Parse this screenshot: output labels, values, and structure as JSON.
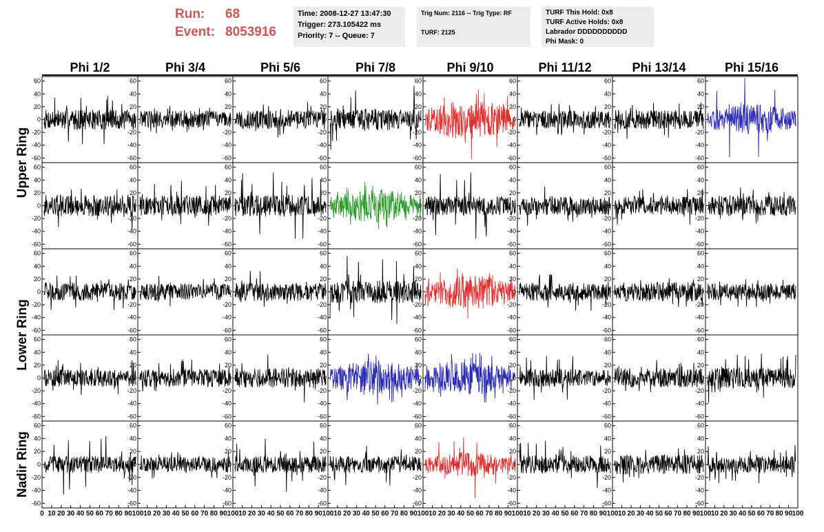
{
  "header": {
    "run_label": "Run:",
    "run_value": "68",
    "event_label": "Event:",
    "event_value": "8053916"
  },
  "info_box_1": {
    "time": "Time: 2008-12-27 13:47:30",
    "trigger": "Trigger: 273.105422 ms",
    "priority": "Priority: 7 -- Queue: 7"
  },
  "info_box_2": {
    "trig": "Trig Num: 2116 -- Trig Type: RF",
    "turf": "TURF: 2125"
  },
  "info_box_3": {
    "this_hold": "TURF This Hold: 0x8",
    "active_holds": "TURF Active Holds: 0x8",
    "labrador": "Labrador DDDDDDDDDD",
    "phi_mask": "Phi Mask: 0"
  },
  "colors": {
    "run_text": "#cd5555",
    "normal_trace": "#000000",
    "red_trace": "#e03030",
    "blue_trace": "#2a2ab4",
    "green_trace": "#2a9a2a"
  },
  "chart_data": {
    "type": "line",
    "column_titles": [
      "Phi 1/2",
      "Phi 3/4",
      "Phi 5/6",
      "Phi 7/8",
      "Phi 9/10",
      "Phi 11/12",
      "Phi 13/14",
      "Phi 15/16"
    ],
    "row_labels": [
      "Upper Ring",
      "Lower Ring",
      "Nadir Ring"
    ],
    "y_ticks": [
      "60",
      "40",
      "20",
      "0",
      "-20",
      "-40",
      "-60"
    ],
    "ylim": [
      -65,
      65
    ],
    "x_tick_labels": [
      [
        "0",
        "10",
        "20",
        "30",
        "40",
        "50",
        "60",
        "70",
        "80",
        "90",
        "100"
      ],
      [
        "10",
        "20",
        "30",
        "40",
        "50",
        "60",
        "70",
        "80",
        "90",
        "100"
      ],
      [
        "10",
        "20",
        "30",
        "40",
        "50",
        "60",
        "70",
        "80",
        "90",
        "100"
      ],
      [
        "10",
        "20",
        "30",
        "40",
        "50",
        "60",
        "70",
        "80",
        "90",
        "100"
      ],
      [
        "10",
        "20",
        "30",
        "40",
        "50",
        "60",
        "70",
        "80",
        "90",
        "100"
      ],
      [
        "10",
        "20",
        "30",
        "40",
        "50",
        "60",
        "70",
        "80",
        "90",
        "100"
      ],
      [
        "10",
        "20",
        "30",
        "40",
        "50",
        "60",
        "70",
        "80",
        "90",
        "100"
      ],
      [
        "10",
        "20",
        "30",
        "40",
        "50",
        "60",
        "70",
        "80",
        "90",
        "100"
      ]
    ],
    "xlim": [
      0,
      100
    ],
    "panel_colors": [
      [
        "black",
        "black",
        "black",
        "black",
        "red",
        "black",
        "black",
        "blue"
      ],
      [
        "black",
        "black",
        "black",
        "green",
        "black",
        "black",
        "black",
        "black"
      ],
      [
        "black",
        "black",
        "black",
        "black",
        "red",
        "black",
        "black",
        "black"
      ],
      [
        "black",
        "black",
        "black",
        "blue",
        "blue",
        "black",
        "black",
        "black"
      ],
      [
        "black",
        "black",
        "black",
        "black",
        "red",
        "black",
        "black",
        "black"
      ]
    ],
    "panel_amplitude": [
      [
        16,
        14,
        15,
        17,
        26,
        14,
        15,
        20
      ],
      [
        17,
        16,
        17,
        22,
        15,
        15,
        14,
        16
      ],
      [
        14,
        13,
        14,
        18,
        22,
        14,
        15,
        13
      ],
      [
        13,
        14,
        15,
        23,
        21,
        14,
        15,
        16
      ],
      [
        13,
        12,
        13,
        13,
        16,
        14,
        15,
        13
      ]
    ],
    "panel_peak": [
      [
        40,
        22,
        30,
        55,
        60,
        25,
        30,
        60
      ],
      [
        40,
        40,
        55,
        35,
        60,
        35,
        30,
        30
      ],
      [
        30,
        25,
        35,
        60,
        35,
        30,
        25,
        25
      ],
      [
        30,
        30,
        40,
        40,
        35,
        35,
        30,
        40
      ],
      [
        50,
        25,
        45,
        35,
        45,
        40,
        30,
        30
      ]
    ]
  }
}
